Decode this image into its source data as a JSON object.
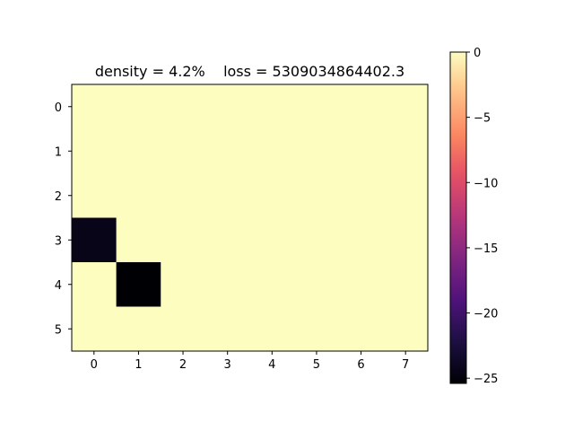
{
  "chart_data": {
    "type": "heatmap",
    "title": "density = 4.2%    loss = 5309034864402.3",
    "xlabel": "",
    "ylabel": "",
    "x_ticks": [
      0,
      1,
      2,
      3,
      4,
      5,
      6,
      7
    ],
    "y_ticks": [
      0,
      1,
      2,
      3,
      4,
      5
    ],
    "rows": 6,
    "cols": 8,
    "values": [
      [
        0,
        0,
        0,
        0,
        0,
        0,
        0,
        0
      ],
      [
        0,
        0,
        0,
        0,
        0,
        0,
        0,
        0
      ],
      [
        0,
        0,
        0,
        0,
        0,
        0,
        0,
        0
      ],
      [
        -24.3,
        0,
        0,
        0,
        0,
        0,
        0,
        0
      ],
      [
        0,
        -25.4,
        0,
        0,
        0,
        0,
        0,
        0
      ],
      [
        0,
        0,
        0,
        0,
        0,
        0,
        0,
        0
      ]
    ],
    "colormap": "magma",
    "color_range": [
      -25.4,
      0
    ],
    "colorbar_ticks": [
      0,
      -5,
      -10,
      -15,
      -20,
      -25
    ],
    "colorbar_tick_labels": [
      "0",
      "−5",
      "−10",
      "−15",
      "−20",
      "−25"
    ],
    "grid": false,
    "legend": "none"
  }
}
